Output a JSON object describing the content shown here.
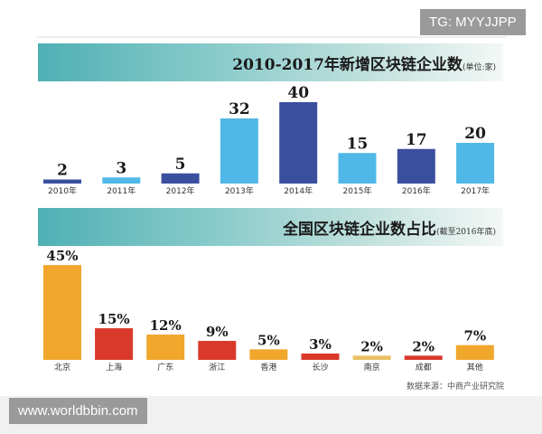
{
  "watermarks": {
    "top": "TG: MYYJJPP",
    "bottom": "www.worldbbin.com"
  },
  "chart_data": [
    {
      "type": "bar",
      "title": "2010-2017年新增区块链企业数",
      "subtitle": "(单位:家)",
      "categories": [
        "2010年",
        "2011年",
        "2012年",
        "2013年",
        "2014年",
        "2015年",
        "2016年",
        "2017年"
      ],
      "values": [
        2,
        3,
        5,
        32,
        40,
        15,
        17,
        20
      ],
      "data_labels": [
        "2",
        "3",
        "5",
        "32",
        "40",
        "15",
        "17",
        "20"
      ],
      "colors": [
        "#3a4f9e",
        "#4fb8e6",
        "#3a4f9e",
        "#4fb8e6",
        "#3a4f9e",
        "#4fb8e6",
        "#3a4f9e",
        "#4fb8e6"
      ],
      "grid": false
    },
    {
      "type": "bar",
      "title": "全国区块链企业数占比",
      "subtitle": "(截至2016年底)",
      "categories": [
        "北京",
        "上海",
        "广东",
        "浙江",
        "香港",
        "长沙",
        "南京",
        "成都",
        "其他"
      ],
      "values": [
        45,
        15,
        12,
        9,
        5,
        3,
        2,
        2,
        7
      ],
      "data_labels": [
        "45%",
        "15%",
        "12%",
        "9%",
        "5%",
        "3%",
        "2%",
        "2%",
        "7%"
      ],
      "colors": [
        "#f0a72c",
        "#d9392a",
        "#f0a72c",
        "#d9392a",
        "#f0a72c",
        "#d9392a",
        "#e8c062",
        "#d9392a",
        "#f0a72c"
      ],
      "grid": false
    }
  ],
  "source": "数据来源：中商产业研究院"
}
